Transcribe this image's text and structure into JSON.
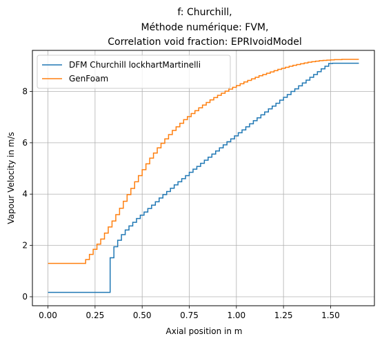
{
  "chart_data": {
    "type": "line",
    "title_lines": [
      "f: Churchill,",
      "Méthode numérique: FVM,",
      "Correlation void fraction: EPRIvoidModel"
    ],
    "xlabel": "Axial position in m",
    "ylabel": "Vapour Velocity in m/s",
    "xlim": [
      -0.0825,
      1.7325
    ],
    "ylim": [
      -0.35,
      9.6
    ],
    "x_ticks": [
      0.0,
      0.25,
      0.5,
      0.75,
      1.0,
      1.25,
      1.5
    ],
    "x_tick_labels": [
      "0.00",
      "0.25",
      "0.50",
      "0.75",
      "1.00",
      "1.25",
      "1.50"
    ],
    "y_ticks": [
      0,
      2,
      4,
      6,
      8
    ],
    "y_tick_labels": [
      "0",
      "2",
      "4",
      "6",
      "8"
    ],
    "grid": true,
    "legend_position": "upper-left",
    "step": true,
    "series": [
      {
        "name": "DFM Churchill lockhartMartinelli",
        "color": "#1f77b4",
        "x": [
          0.0,
          0.33,
          0.33,
          0.35,
          0.37,
          0.39,
          0.41,
          0.43,
          0.45,
          0.47,
          0.49,
          0.51,
          0.53,
          0.55,
          0.57,
          0.59,
          0.61,
          0.63,
          0.65,
          0.67,
          0.69,
          0.71,
          0.73,
          0.75,
          0.77,
          0.79,
          0.81,
          0.83,
          0.85,
          0.87,
          0.89,
          0.91,
          0.93,
          0.95,
          0.97,
          0.99,
          1.01,
          1.03,
          1.05,
          1.07,
          1.09,
          1.11,
          1.13,
          1.15,
          1.17,
          1.19,
          1.21,
          1.23,
          1.25,
          1.27,
          1.29,
          1.31,
          1.33,
          1.35,
          1.37,
          1.39,
          1.41,
          1.43,
          1.45,
          1.47,
          1.49,
          1.51,
          1.53,
          1.55,
          1.57,
          1.59,
          1.61,
          1.63,
          1.65
        ],
        "y": [
          0.17,
          0.17,
          1.52,
          1.95,
          2.2,
          2.42,
          2.6,
          2.76,
          2.9,
          3.05,
          3.18,
          3.3,
          3.44,
          3.57,
          3.7,
          3.85,
          3.98,
          4.1,
          4.23,
          4.36,
          4.48,
          4.6,
          4.72,
          4.85,
          4.97,
          5.08,
          5.2,
          5.32,
          5.44,
          5.56,
          5.68,
          5.8,
          5.92,
          6.04,
          6.15,
          6.27,
          6.39,
          6.5,
          6.62,
          6.74,
          6.86,
          6.97,
          7.09,
          7.2,
          7.32,
          7.43,
          7.54,
          7.66,
          7.77,
          7.88,
          8.0,
          8.1,
          8.22,
          8.33,
          8.44,
          8.55,
          8.66,
          8.77,
          8.88,
          8.98,
          9.09,
          9.1,
          9.1,
          9.1,
          9.1,
          9.1,
          9.1,
          9.1,
          9.1
        ]
      },
      {
        "name": "GenFoam",
        "color": "#ff7f0e",
        "x": [
          0.0,
          0.18,
          0.2,
          0.22,
          0.24,
          0.26,
          0.28,
          0.3,
          0.32,
          0.34,
          0.36,
          0.38,
          0.4,
          0.42,
          0.44,
          0.46,
          0.48,
          0.5,
          0.52,
          0.54,
          0.56,
          0.58,
          0.6,
          0.62,
          0.64,
          0.66,
          0.68,
          0.7,
          0.72,
          0.74,
          0.76,
          0.78,
          0.8,
          0.82,
          0.84,
          0.86,
          0.88,
          0.9,
          0.92,
          0.94,
          0.96,
          0.98,
          1.0,
          1.02,
          1.04,
          1.06,
          1.08,
          1.1,
          1.12,
          1.14,
          1.16,
          1.18,
          1.2,
          1.22,
          1.24,
          1.26,
          1.28,
          1.3,
          1.32,
          1.34,
          1.36,
          1.38,
          1.4,
          1.42,
          1.44,
          1.46,
          1.48,
          1.5,
          1.52,
          1.54,
          1.56,
          1.58,
          1.6,
          1.62,
          1.65
        ],
        "y": [
          1.3,
          1.3,
          1.45,
          1.65,
          1.85,
          2.05,
          2.25,
          2.48,
          2.72,
          2.95,
          3.2,
          3.45,
          3.72,
          3.98,
          4.22,
          4.48,
          4.72,
          4.95,
          5.18,
          5.4,
          5.6,
          5.8,
          5.98,
          6.15,
          6.32,
          6.48,
          6.62,
          6.76,
          6.9,
          7.02,
          7.14,
          7.25,
          7.36,
          7.47,
          7.57,
          7.67,
          7.76,
          7.85,
          7.93,
          8.01,
          8.09,
          8.16,
          8.23,
          8.3,
          8.37,
          8.43,
          8.49,
          8.55,
          8.61,
          8.66,
          8.71,
          8.76,
          8.81,
          8.86,
          8.9,
          8.94,
          8.98,
          9.02,
          9.05,
          9.08,
          9.11,
          9.14,
          9.16,
          9.18,
          9.2,
          9.21,
          9.22,
          9.23,
          9.24,
          9.24,
          9.25,
          9.25,
          9.25,
          9.25,
          9.25
        ]
      }
    ]
  }
}
